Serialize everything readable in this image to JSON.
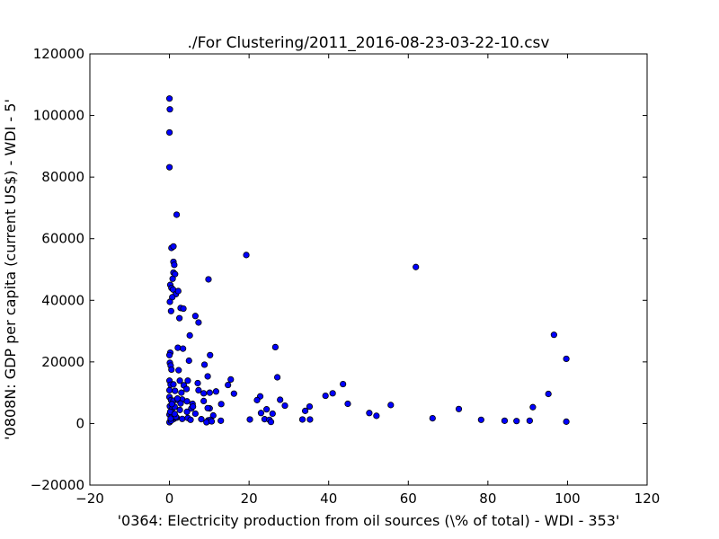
{
  "chart_data": {
    "type": "scatter",
    "title": "./For Clustering/2011_2016-08-23-03-22-10.csv",
    "xlabel": "'0364: Electricity production from oil sources  (\\% of total) - WDI - 353'",
    "ylabel": "'0808N: GDP per capita  (current US$) - WDI - 5'",
    "xlim": [
      -20,
      120
    ],
    "ylim": [
      -20000,
      120000
    ],
    "xticks": [
      -20,
      0,
      20,
      40,
      60,
      80,
      100,
      120
    ],
    "yticks": [
      -20000,
      0,
      20000,
      40000,
      60000,
      80000,
      100000,
      120000
    ],
    "xtick_labels": [
      "−20",
      "0",
      "20",
      "40",
      "60",
      "80",
      "100",
      "120"
    ],
    "ytick_labels": [
      "−20000",
      "0",
      "20000",
      "40000",
      "60000",
      "80000",
      "100000",
      "120000"
    ],
    "grid": false,
    "marker_color": "#0000ff",
    "marker_edge_color": "#000000",
    "points": [
      [
        0.0,
        105500
      ],
      [
        0.1,
        102000
      ],
      [
        0.0,
        94500
      ],
      [
        0.0,
        83200
      ],
      [
        1.8,
        67800
      ],
      [
        0.5,
        57000
      ],
      [
        1.0,
        57500
      ],
      [
        1.0,
        52500
      ],
      [
        1.2,
        51500
      ],
      [
        1.0,
        49000
      ],
      [
        1.4,
        48500
      ],
      [
        0.8,
        47000
      ],
      [
        0.2,
        45000
      ],
      [
        0.5,
        44000
      ],
      [
        0.9,
        43500
      ],
      [
        1.6,
        42000
      ],
      [
        2.2,
        43000
      ],
      [
        0.7,
        41000
      ],
      [
        0.1,
        39500
      ],
      [
        0.4,
        36500
      ],
      [
        2.8,
        37500
      ],
      [
        3.5,
        37300
      ],
      [
        2.5,
        34200
      ],
      [
        6.5,
        34900
      ],
      [
        7.3,
        32800
      ],
      [
        9.8,
        46800
      ],
      [
        19.3,
        54700
      ],
      [
        61.9,
        50800
      ],
      [
        5.1,
        28600
      ],
      [
        2.1,
        24600
      ],
      [
        3.4,
        24300
      ],
      [
        0.2,
        23000
      ],
      [
        0.0,
        22200
      ],
      [
        10.2,
        22200
      ],
      [
        4.9,
        20400
      ],
      [
        0.1,
        19700
      ],
      [
        0.3,
        18800
      ],
      [
        0.5,
        17500
      ],
      [
        2.3,
        17300
      ],
      [
        8.8,
        19100
      ],
      [
        9.6,
        15300
      ],
      [
        14.7,
        12500
      ],
      [
        15.4,
        14300
      ],
      [
        26.6,
        24800
      ],
      [
        27.1,
        15000
      ],
      [
        43.6,
        12800
      ],
      [
        96.6,
        28800
      ],
      [
        99.7,
        21000
      ],
      [
        0.0,
        13900
      ],
      [
        0.3,
        12600
      ],
      [
        1.0,
        12700
      ],
      [
        2.6,
        13900
      ],
      [
        3.6,
        12400
      ],
      [
        4.6,
        13900
      ],
      [
        7.1,
        13100
      ],
      [
        0.0,
        10800
      ],
      [
        1.4,
        10600
      ],
      [
        3.0,
        10000
      ],
      [
        4.3,
        11200
      ],
      [
        7.3,
        10800
      ],
      [
        8.6,
        9800
      ],
      [
        10.1,
        10000
      ],
      [
        11.7,
        10400
      ],
      [
        16.2,
        9700
      ],
      [
        22.8,
        8800
      ],
      [
        39.2,
        9000
      ],
      [
        41.0,
        9800
      ],
      [
        95.2,
        9600
      ],
      [
        0.0,
        8600
      ],
      [
        0.4,
        7600
      ],
      [
        1.0,
        7400
      ],
      [
        2.1,
        7600
      ],
      [
        3.2,
        7800
      ],
      [
        4.4,
        7200
      ],
      [
        5.8,
        6400
      ],
      [
        8.6,
        7300
      ],
      [
        10.1,
        4900
      ],
      [
        13.0,
        6300
      ],
      [
        22.0,
        7600
      ],
      [
        27.8,
        7700
      ],
      [
        29.0,
        5800
      ],
      [
        35.2,
        5500
      ],
      [
        44.8,
        6400
      ],
      [
        55.6,
        6000
      ],
      [
        72.7,
        4700
      ],
      [
        91.3,
        5300
      ],
      [
        0.1,
        5600
      ],
      [
        0.7,
        4800
      ],
      [
        1.3,
        5400
      ],
      [
        2.6,
        4400
      ],
      [
        4.4,
        3800
      ],
      [
        5.5,
        4900
      ],
      [
        6.5,
        3200
      ],
      [
        9.6,
        5000
      ],
      [
        11.0,
        2600
      ],
      [
        23.0,
        3400
      ],
      [
        24.4,
        4600
      ],
      [
        25.9,
        3200
      ],
      [
        34.1,
        4100
      ],
      [
        50.2,
        3400
      ],
      [
        0.0,
        2900
      ],
      [
        0.6,
        2400
      ],
      [
        1.1,
        1500
      ],
      [
        1.8,
        1900
      ],
      [
        3.2,
        1500
      ],
      [
        4.6,
        1800
      ],
      [
        5.3,
        1200
      ],
      [
        8.0,
        1400
      ],
      [
        9.7,
        1000
      ],
      [
        10.3,
        1200
      ],
      [
        12.9,
        900
      ],
      [
        20.2,
        1300
      ],
      [
        23.9,
        1400
      ],
      [
        25.1,
        1200
      ],
      [
        25.5,
        500
      ],
      [
        33.4,
        1300
      ],
      [
        35.3,
        1300
      ],
      [
        52.0,
        2500
      ],
      [
        66.1,
        1700
      ],
      [
        78.3,
        1200
      ],
      [
        84.2,
        900
      ],
      [
        87.2,
        800
      ],
      [
        90.5,
        900
      ],
      [
        99.7,
        600
      ],
      [
        0.0,
        400
      ],
      [
        0.4,
        900
      ],
      [
        0.2,
        3800
      ],
      [
        1.6,
        2200
      ],
      [
        2.8,
        6500
      ],
      [
        5.9,
        5500
      ],
      [
        0.6,
        6300
      ],
      [
        9.3,
        400
      ],
      [
        10.6,
        700
      ],
      [
        2.0,
        8100
      ],
      [
        1.3,
        3100
      ],
      [
        0.3,
        1600
      ]
    ]
  }
}
